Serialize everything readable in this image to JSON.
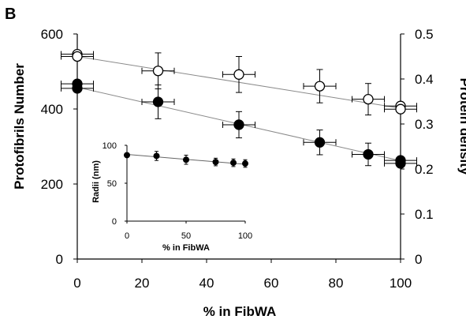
{
  "panel_label": "B",
  "chart_data": [
    {
      "type": "scatter",
      "role": "main",
      "xlabel": "% in FibWA",
      "ylabel": "Protofibrils Number",
      "y2label": "Protein density",
      "xlim": [
        0,
        100
      ],
      "ylim": [
        0,
        600
      ],
      "y2lim": [
        0,
        0.5
      ],
      "x_ticks": [
        "0",
        "20",
        "40",
        "60",
        "80",
        "100"
      ],
      "y_ticks": [
        "0",
        "200",
        "400",
        "600"
      ],
      "y2_ticks": [
        "0",
        "0.1",
        "0.2",
        "0.3",
        "0.4",
        "0.5"
      ],
      "series": [
        {
          "marker": "open-circle",
          "axis": "right",
          "x": [
            0,
            0,
            25,
            50,
            75,
            90,
            100,
            100
          ],
          "y": [
            0.455,
            0.45,
            0.418,
            0.41,
            0.384,
            0.355,
            0.34,
            0.333
          ],
          "xerr": [
            5,
            5,
            5,
            5,
            5,
            5,
            5,
            5
          ],
          "yerr": [
            0,
            0,
            0.04,
            0.04,
            0.037,
            0.035,
            0,
            0
          ],
          "fit": [
            [
              0,
              0.45
            ],
            [
              100,
              0.335
            ]
          ]
        },
        {
          "marker": "filled-circle",
          "axis": "left",
          "x": [
            0,
            0,
            25,
            50,
            75,
            90,
            100,
            100
          ],
          "y": [
            467,
            455,
            419,
            358,
            311,
            279,
            263,
            255
          ],
          "xerr": [
            5,
            5,
            5,
            5,
            5,
            5,
            5,
            5
          ],
          "yerr": [
            0,
            0,
            45,
            35,
            33,
            30,
            0,
            0
          ],
          "fit": [
            [
              0,
              458
            ],
            [
              100,
              262
            ]
          ]
        }
      ]
    },
    {
      "type": "scatter",
      "role": "inset",
      "xlabel": "% in FibWA",
      "ylabel": "Radii (nm)",
      "xlim": [
        0,
        100
      ],
      "ylim": [
        0,
        100
      ],
      "x_ticks": [
        "0",
        "50",
        "100"
      ],
      "y_ticks": [
        "0",
        "50",
        "100"
      ],
      "series": [
        {
          "marker": "filled-circle",
          "x": [
            0,
            25,
            50,
            75,
            90,
            100
          ],
          "y": [
            87,
            86,
            81,
            78,
            77,
            76
          ],
          "yerr": [
            0,
            6,
            6,
            5,
            5,
            5
          ],
          "fit": [
            [
              0,
              88
            ],
            [
              100,
              75
            ]
          ]
        }
      ]
    }
  ]
}
